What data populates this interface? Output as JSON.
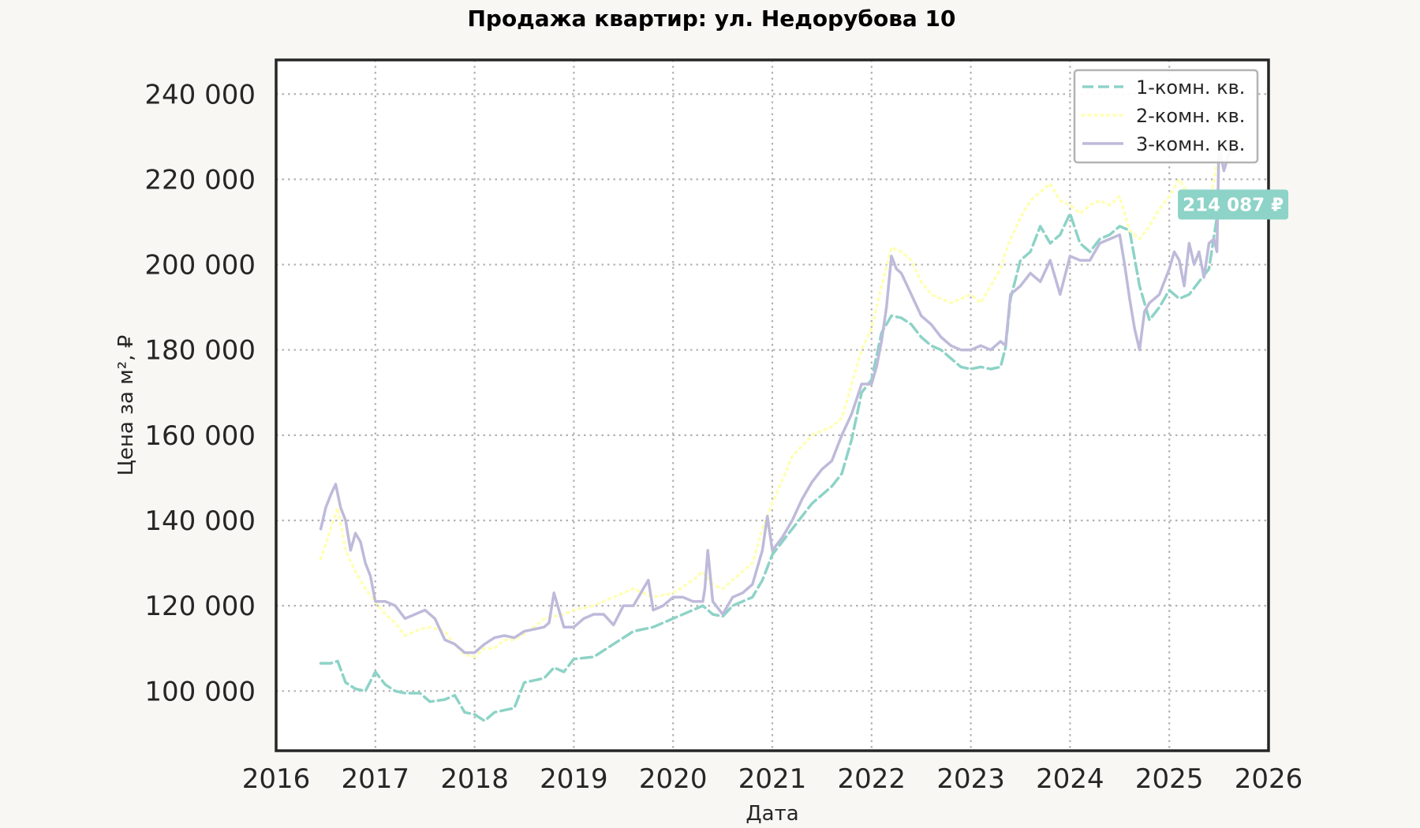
{
  "chart_data": {
    "type": "line",
    "title": "Продажа квартир: ул. Недорубова 10",
    "xlabel": "Дата",
    "ylabel": "Цена за м², ₽",
    "xlim": [
      2016.0,
      2026.0
    ],
    "ylim": [
      86000,
      248000
    ],
    "x_ticks": [
      2016,
      2017,
      2018,
      2019,
      2020,
      2021,
      2022,
      2023,
      2024,
      2025,
      2026
    ],
    "x_tick_labels": [
      "2016",
      "2017",
      "2018",
      "2019",
      "2020",
      "2021",
      "2022",
      "2023",
      "2024",
      "2025",
      "2026"
    ],
    "y_ticks": [
      100000,
      120000,
      140000,
      160000,
      180000,
      200000,
      220000,
      240000
    ],
    "y_tick_labels": [
      "100 000",
      "120 000",
      "140 000",
      "160 000",
      "180 000",
      "200 000",
      "220 000",
      "240 000"
    ],
    "grid": true,
    "legend_position": "top-right",
    "last_value_label": "214 087 ₽",
    "series": [
      {
        "name": "1-комн. кв.",
        "color": "#8dd3c7",
        "style": "dashed",
        "x": [
          2016.45,
          2016.55,
          2016.62,
          2016.7,
          2016.8,
          2016.9,
          2017.0,
          2017.1,
          2017.2,
          2017.3,
          2017.45,
          2017.55,
          2017.7,
          2017.8,
          2017.9,
          2018.0,
          2018.1,
          2018.2,
          2018.3,
          2018.4,
          2018.5,
          2018.6,
          2018.7,
          2018.8,
          2018.9,
          2019.0,
          2019.2,
          2019.4,
          2019.6,
          2019.8,
          2020.0,
          2020.2,
          2020.3,
          2020.4,
          2020.5,
          2020.6,
          2020.8,
          2020.9,
          2021.0,
          2021.2,
          2021.4,
          2021.6,
          2021.7,
          2021.8,
          2021.9,
          2022.0,
          2022.1,
          2022.2,
          2022.3,
          2022.4,
          2022.5,
          2022.6,
          2022.7,
          2022.8,
          2022.9,
          2023.0,
          2023.1,
          2023.2,
          2023.3,
          2023.35,
          2023.4,
          2023.5,
          2023.6,
          2023.7,
          2023.8,
          2023.9,
          2024.0,
          2024.1,
          2024.2,
          2024.3,
          2024.4,
          2024.5,
          2024.6,
          2024.7,
          2024.8,
          2024.9,
          2025.0,
          2025.1,
          2025.2,
          2025.3,
          2025.4,
          2025.5
        ],
        "values": [
          106500,
          106500,
          107000,
          102000,
          100500,
          100000,
          104500,
          101500,
          100000,
          99500,
          99500,
          97500,
          98000,
          99000,
          95000,
          94500,
          93000,
          95000,
          95500,
          96000,
          102000,
          102500,
          103000,
          105500,
          104500,
          107500,
          108000,
          111000,
          114000,
          115000,
          117000,
          119000,
          120000,
          118000,
          117500,
          120000,
          122000,
          126000,
          132000,
          138000,
          144000,
          148000,
          151000,
          159000,
          170000,
          173000,
          184000,
          188000,
          187500,
          186000,
          183000,
          181000,
          180000,
          178000,
          176000,
          175500,
          176000,
          175500,
          176000,
          180500,
          192000,
          201000,
          203000,
          209000,
          205000,
          207000,
          212000,
          205000,
          203000,
          206000,
          207000,
          209000,
          208000,
          195000,
          187000,
          190000,
          194000,
          192000,
          193000,
          196000,
          199000,
          214087
        ]
      },
      {
        "name": "2-комн. кв.",
        "color": "#ffffb3",
        "style": "dotted",
        "x": [
          2016.45,
          2016.55,
          2016.62,
          2016.7,
          2016.8,
          2016.9,
          2017.0,
          2017.1,
          2017.2,
          2017.3,
          2017.45,
          2017.55,
          2017.7,
          2017.8,
          2017.9,
          2018.0,
          2018.1,
          2018.2,
          2018.3,
          2018.4,
          2018.5,
          2018.6,
          2018.7,
          2018.8,
          2018.9,
          2019.0,
          2019.2,
          2019.4,
          2019.6,
          2019.8,
          2020.0,
          2020.2,
          2020.3,
          2020.4,
          2020.5,
          2020.6,
          2020.8,
          2020.9,
          2021.0,
          2021.2,
          2021.4,
          2021.6,
          2021.7,
          2021.8,
          2021.9,
          2022.0,
          2022.1,
          2022.2,
          2022.3,
          2022.4,
          2022.5,
          2022.6,
          2022.7,
          2022.8,
          2022.9,
          2023.0,
          2023.1,
          2023.2,
          2023.3,
          2023.35,
          2023.4,
          2023.5,
          2023.6,
          2023.7,
          2023.8,
          2023.9,
          2024.0,
          2024.1,
          2024.2,
          2024.3,
          2024.4,
          2024.5,
          2024.6,
          2024.7,
          2024.8,
          2024.9,
          2025.0,
          2025.1,
          2025.2,
          2025.3,
          2025.4,
          2025.5,
          2025.65,
          2025.75
        ],
        "values": [
          131000,
          138000,
          143000,
          133000,
          128000,
          124000,
          121000,
          118000,
          116000,
          113000,
          114500,
          115000,
          114000,
          111000,
          108500,
          108000,
          110000,
          110000,
          112000,
          112000,
          113500,
          115000,
          117000,
          117500,
          118000,
          119000,
          120000,
          122000,
          124000,
          122000,
          123000,
          126000,
          128000,
          125000,
          124000,
          126000,
          130000,
          138000,
          144000,
          155000,
          160000,
          162000,
          164000,
          172000,
          180000,
          185000,
          195000,
          204000,
          203000,
          201000,
          196000,
          193000,
          192000,
          191000,
          192000,
          193000,
          191000,
          195000,
          199000,
          203000,
          206000,
          211000,
          215000,
          217000,
          219000,
          215000,
          214000,
          212000,
          214000,
          215000,
          214000,
          216000,
          208000,
          206000,
          209000,
          213000,
          216000,
          220000,
          216000,
          214000,
          214000,
          226000,
          228000,
          230000
        ]
      },
      {
        "name": "3-комн. кв.",
        "color": "#bebada",
        "style": "solid",
        "x": [
          2016.45,
          2016.5,
          2016.55,
          2016.6,
          2016.65,
          2016.7,
          2016.75,
          2016.8,
          2016.85,
          2016.9,
          2016.95,
          2017.0,
          2017.1,
          2017.2,
          2017.3,
          2017.4,
          2017.5,
          2017.6,
          2017.7,
          2017.8,
          2017.9,
          2018.0,
          2018.1,
          2018.2,
          2018.3,
          2018.4,
          2018.5,
          2018.6,
          2018.7,
          2018.75,
          2018.8,
          2018.9,
          2019.0,
          2019.1,
          2019.2,
          2019.3,
          2019.4,
          2019.5,
          2019.6,
          2019.7,
          2019.75,
          2019.8,
          2019.9,
          2020.0,
          2020.1,
          2020.2,
          2020.3,
          2020.32,
          2020.35,
          2020.4,
          2020.5,
          2020.6,
          2020.7,
          2020.8,
          2020.9,
          2020.95,
          2021.0,
          2021.1,
          2021.2,
          2021.3,
          2021.4,
          2021.5,
          2021.6,
          2021.7,
          2021.8,
          2021.9,
          2022.0,
          2022.05,
          2022.1,
          2022.15,
          2022.2,
          2022.25,
          2022.3,
          2022.4,
          2022.5,
          2022.6,
          2022.7,
          2022.8,
          2022.9,
          2023.0,
          2023.1,
          2023.2,
          2023.3,
          2023.35,
          2023.4,
          2023.5,
          2023.6,
          2023.7,
          2023.8,
          2023.85,
          2023.9,
          2024.0,
          2024.1,
          2024.2,
          2024.3,
          2024.4,
          2024.5,
          2024.55,
          2024.6,
          2024.65,
          2024.7,
          2024.75,
          2024.8,
          2024.9,
          2025.0,
          2025.05,
          2025.1,
          2025.15,
          2025.2,
          2025.25,
          2025.3,
          2025.35,
          2025.4,
          2025.45,
          2025.48,
          2025.5,
          2025.55,
          2025.6,
          2025.7,
          2025.75
        ],
        "values": [
          138000,
          143000,
          146000,
          148500,
          143000,
          140000,
          133000,
          137000,
          135000,
          130000,
          127000,
          121000,
          121000,
          120000,
          117000,
          118000,
          119000,
          117000,
          112000,
          111000,
          109000,
          109000,
          111000,
          112500,
          113000,
          112500,
          114000,
          114500,
          115000,
          116000,
          123000,
          115000,
          115000,
          117000,
          118000,
          118000,
          115500,
          120000,
          120000,
          124000,
          126000,
          119000,
          120000,
          122000,
          122000,
          121000,
          121000,
          124000,
          133000,
          121000,
          118000,
          122000,
          123000,
          125000,
          133000,
          141000,
          133000,
          136000,
          140000,
          145000,
          149000,
          152000,
          154000,
          160000,
          165000,
          172000,
          172000,
          176000,
          182000,
          190000,
          202000,
          199000,
          198000,
          193000,
          188000,
          186000,
          183000,
          181000,
          180000,
          180000,
          181000,
          180000,
          182000,
          181000,
          193000,
          195000,
          198000,
          196000,
          201000,
          197000,
          193000,
          202000,
          201000,
          201000,
          205000,
          206000,
          207000,
          200000,
          192000,
          185000,
          180000,
          189000,
          191000,
          193000,
          199000,
          203000,
          201000,
          195000,
          205000,
          200000,
          203000,
          197000,
          205000,
          206000,
          203000,
          228000,
          222000,
          226000,
          227000,
          228000
        ]
      }
    ]
  }
}
